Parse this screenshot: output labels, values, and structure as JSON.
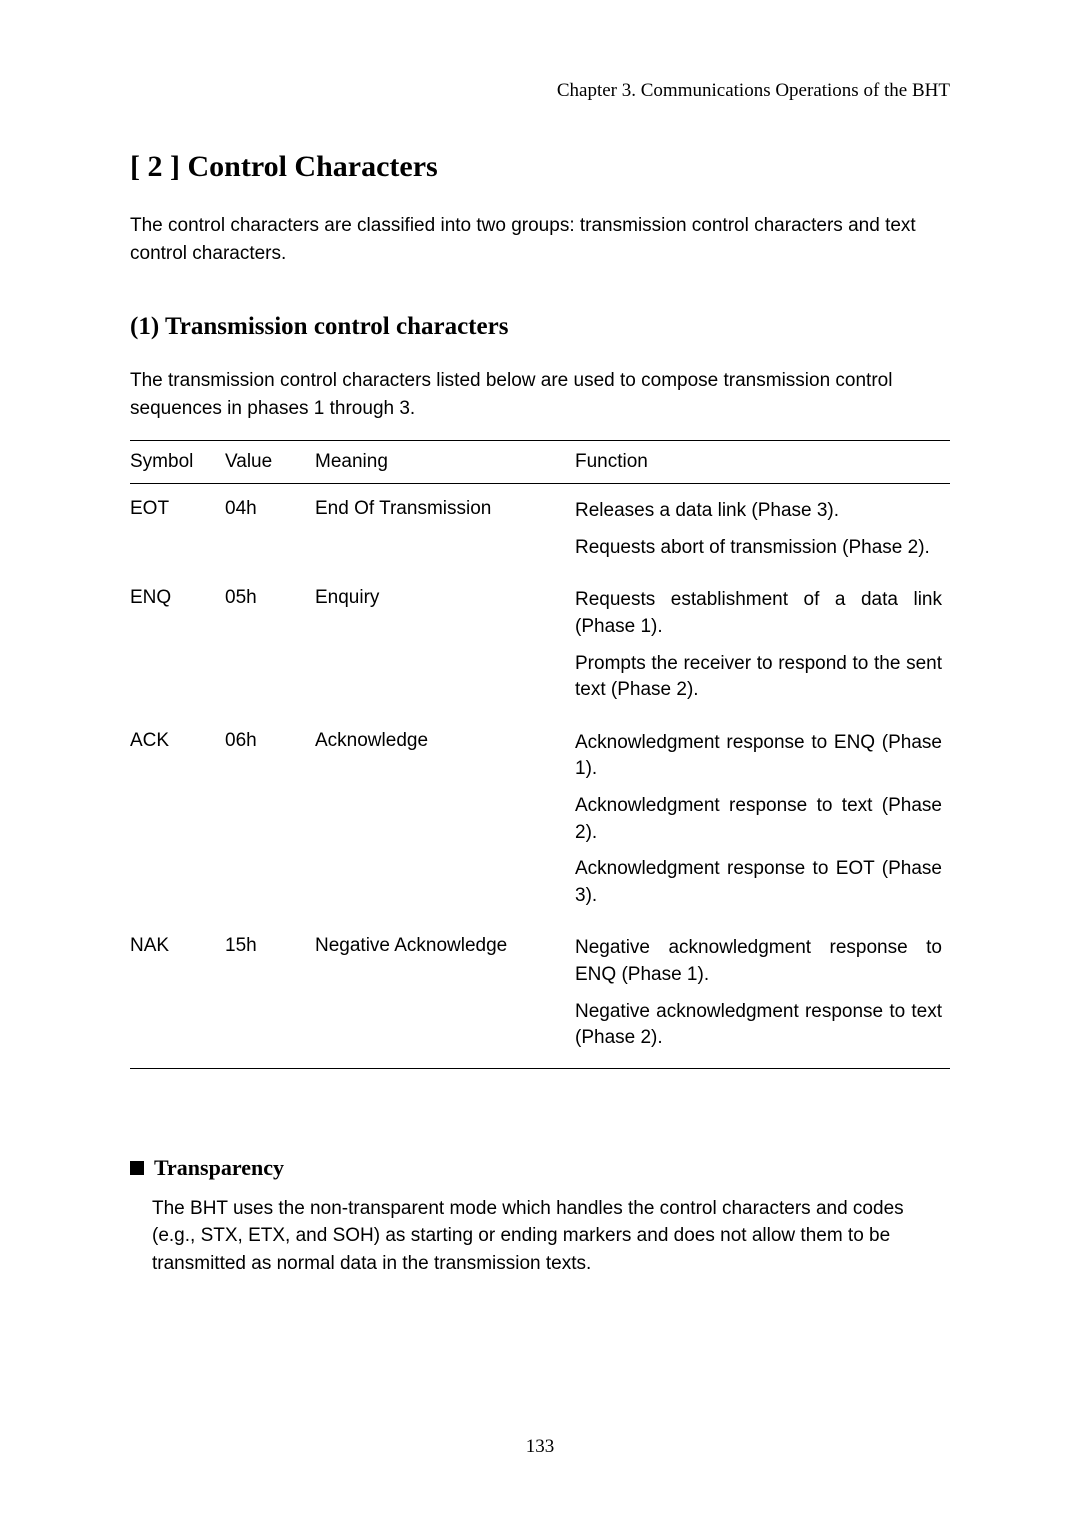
{
  "chapter_header": "Chapter 3.  Communications Operations of the BHT",
  "section_title": "[ 2 ]   Control Characters",
  "intro": "The control characters are classified into two groups:  transmission control characters and text control characters.",
  "subsection_title": "(1)  Transmission control characters",
  "subsection_intro": "The transmission control characters listed below are used to compose transmission control sequences in phases 1 through 3.",
  "table": {
    "headers": {
      "symbol": "Symbol",
      "value": "Value",
      "meaning": "Meaning",
      "function": "Function"
    },
    "rows": [
      {
        "symbol": "EOT",
        "value": "04h",
        "meaning": "End Of Transmission",
        "functions": [
          {
            "text": "Releases a data link (Phase 3).",
            "justify": false
          },
          {
            "text": "Requests abort of transmission (Phase 2).",
            "justify": true
          }
        ]
      },
      {
        "symbol": "ENQ",
        "value": "05h",
        "meaning": "Enquiry",
        "functions": [
          {
            "text": "Requests establishment of a data link (Phase 1).",
            "justify": true
          },
          {
            "text": "Prompts the receiver to respond to the sent text (Phase 2).",
            "justify": true
          }
        ]
      },
      {
        "symbol": "ACK",
        "value": "06h",
        "meaning": "Acknowledge",
        "functions": [
          {
            "text": "Acknowledgment response to ENQ (Phase 1).",
            "justify": true
          },
          {
            "text": "Acknowledgment response to text (Phase 2).",
            "justify": true
          },
          {
            "text": "Acknowledgment response to EOT (Phase 3).",
            "justify": true
          }
        ]
      },
      {
        "symbol": "NAK",
        "value": "15h",
        "meaning": "Negative Acknowledge",
        "functions": [
          {
            "text": "Negative acknowledgment response to ENQ (Phase 1).",
            "justify": true
          },
          {
            "text": "Negative acknowledgment response to text (Phase 2).",
            "justify": true
          }
        ]
      }
    ]
  },
  "transparency": {
    "heading": "Transparency",
    "body": "The BHT uses the non-transparent mode which handles the control characters and codes (e.g., STX, ETX, and SOH) as starting or ending markers and does not allow them to be transmitted as normal data in the transmission texts."
  },
  "page_number": "133"
}
